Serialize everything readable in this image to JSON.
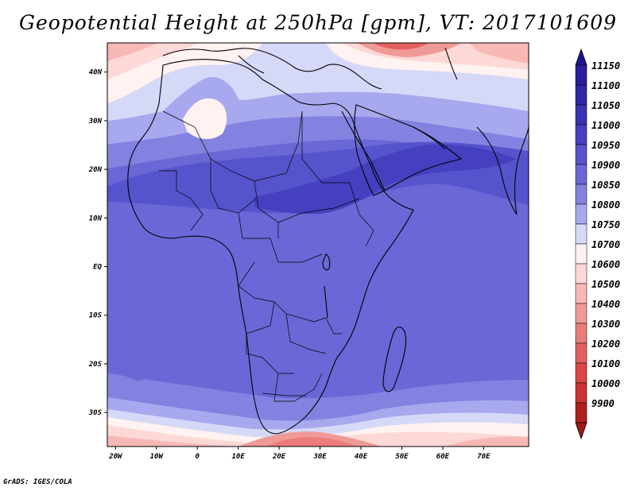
{
  "title": "Geopotential Height at 250hPa [gpm], VT: 2017101609",
  "credit": "GrADS: IGES/COLA",
  "map": {
    "lon_range": [
      -22,
      81
    ],
    "lat_range": [
      -37,
      46
    ],
    "lon_ticks": [
      {
        "value": -20,
        "label": "20W"
      },
      {
        "value": -10,
        "label": "10W"
      },
      {
        "value": 0,
        "label": "0"
      },
      {
        "value": 10,
        "label": "10E"
      },
      {
        "value": 20,
        "label": "20E"
      },
      {
        "value": 30,
        "label": "30E"
      },
      {
        "value": 40,
        "label": "40E"
      },
      {
        "value": 50,
        "label": "50E"
      },
      {
        "value": 60,
        "label": "60E"
      },
      {
        "value": 70,
        "label": "70E"
      }
    ],
    "lat_ticks": [
      {
        "value": 40,
        "label": "40N"
      },
      {
        "value": 30,
        "label": "30N"
      },
      {
        "value": 20,
        "label": "20N"
      },
      {
        "value": 10,
        "label": "10N"
      },
      {
        "value": 0,
        "label": "EQ"
      },
      {
        "value": -10,
        "label": "10S"
      },
      {
        "value": -20,
        "label": "20S"
      },
      {
        "value": -30,
        "label": "30S"
      }
    ]
  },
  "colorbar": {
    "levels": [
      {
        "label": "11150",
        "color": "#2a1e9c"
      },
      {
        "label": "11100",
        "color": "#3026a8"
      },
      {
        "label": "11050",
        "color": "#3a32b4"
      },
      {
        "label": "11000",
        "color": "#4440c0"
      },
      {
        "label": "10950",
        "color": "#5654cc"
      },
      {
        "label": "10900",
        "color": "#6a68d6"
      },
      {
        "label": "10850",
        "color": "#8482e0"
      },
      {
        "label": "10800",
        "color": "#a8a8ee"
      },
      {
        "label": "10750",
        "color": "#d6d8f8"
      },
      {
        "label": "10700",
        "color": "#fff2f0"
      },
      {
        "label": "10600",
        "color": "#fcd8d6"
      },
      {
        "label": "10500",
        "color": "#f8b8b6"
      },
      {
        "label": "10400",
        "color": "#f09a98"
      },
      {
        "label": "10300",
        "color": "#ea7c7a"
      },
      {
        "label": "10200",
        "color": "#e46060"
      },
      {
        "label": "10100",
        "color": "#dc4646"
      },
      {
        "label": "10000",
        "color": "#cc3232"
      },
      {
        "label": "9900",
        "color": "#b21e1e"
      }
    ],
    "top_arrow_color": "#1e1690",
    "bottom_arrow_color": "#a01818"
  }
}
